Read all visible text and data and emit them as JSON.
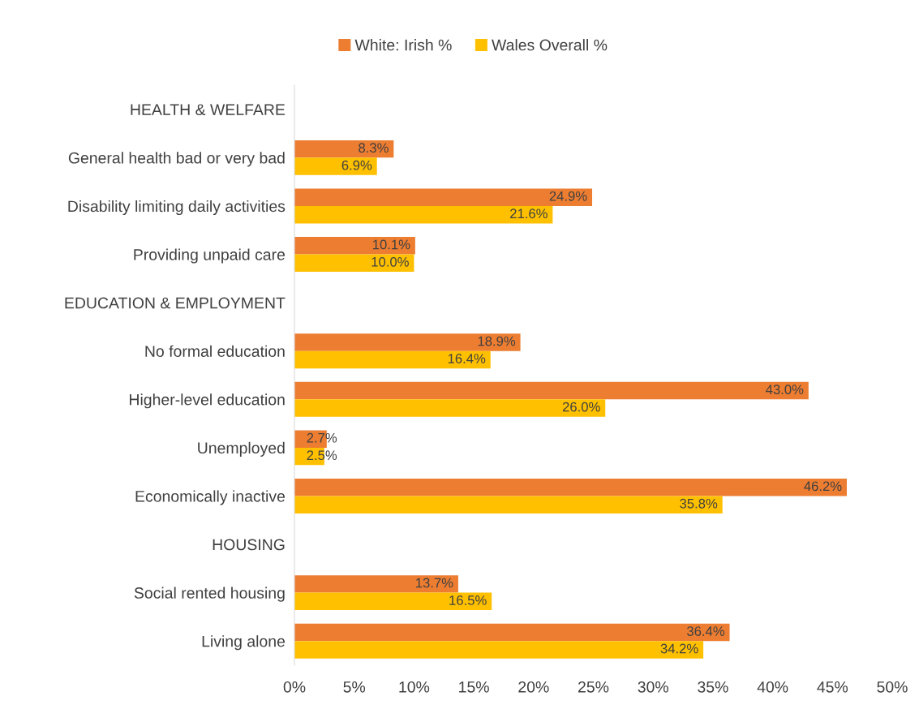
{
  "chart_data": {
    "type": "bar",
    "orientation": "horizontal",
    "categories": [
      "HEALTH & WELFARE",
      "General health bad or very bad",
      "Disability limiting daily activities",
      "Providing unpaid care",
      "EDUCATION & EMPLOYMENT",
      "No formal education",
      "Higher-level education",
      "Unemployed",
      "Economically inactive",
      "HOUSING",
      "Social rented housing",
      "Living alone"
    ],
    "series": [
      {
        "name": "White: Irish %",
        "color": "#ed7d31",
        "values": [
          null,
          8.3,
          24.9,
          10.1,
          null,
          18.9,
          43.0,
          2.7,
          46.2,
          null,
          13.7,
          36.4
        ],
        "value_labels": [
          null,
          "8.3%",
          "24.9%",
          "10.1%",
          null,
          "18.9%",
          "43.0%",
          "2.7%",
          "46.2%",
          null,
          "13.7%",
          "36.4%"
        ]
      },
      {
        "name": "Wales Overall %",
        "color": "#ffc000",
        "values": [
          null,
          6.9,
          21.6,
          10.0,
          null,
          16.4,
          26.0,
          2.5,
          35.8,
          null,
          16.5,
          34.2
        ],
        "value_labels": [
          null,
          "6.9%",
          "21.6%",
          "10.0%",
          null,
          "16.4%",
          "26.0%",
          "2.5%",
          "35.8%",
          null,
          "16.5%",
          "34.2%"
        ]
      }
    ],
    "xlim": [
      0,
      50
    ],
    "xticks": [
      {
        "value": 0,
        "label": "0%"
      },
      {
        "value": 5,
        "label": "5%"
      },
      {
        "value": 10,
        "label": "10%"
      },
      {
        "value": 15,
        "label": "15%"
      },
      {
        "value": 20,
        "label": "20%"
      },
      {
        "value": 25,
        "label": "25%"
      },
      {
        "value": 30,
        "label": "30%"
      },
      {
        "value": 35,
        "label": "35%"
      },
      {
        "value": 40,
        "label": "40%"
      },
      {
        "value": 45,
        "label": "45%"
      },
      {
        "value": 50,
        "label": "50%"
      }
    ],
    "grid": false,
    "legend": "top"
  }
}
